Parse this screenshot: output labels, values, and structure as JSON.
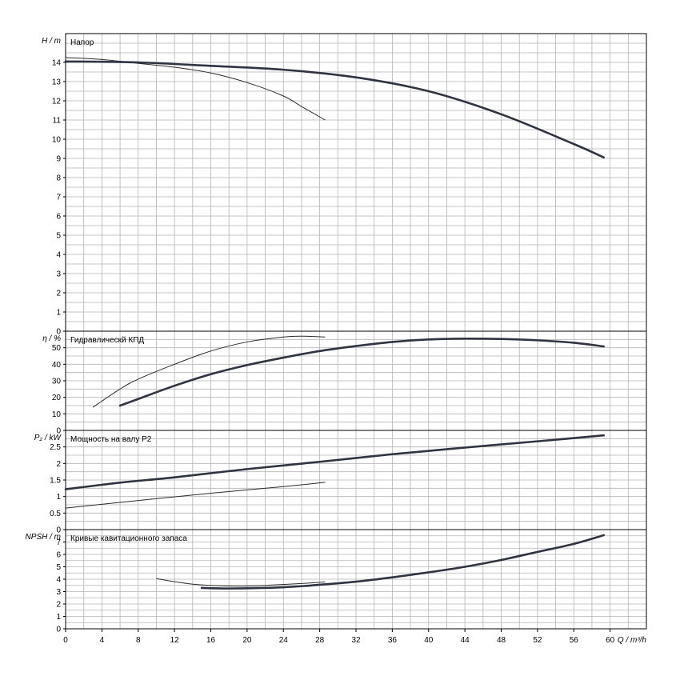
{
  "chart_data": {
    "type": "line",
    "x_axis": {
      "label": "Q / m³/h",
      "range": [
        0,
        64
      ],
      "ticks": [
        0,
        4,
        8,
        12,
        16,
        20,
        24,
        28,
        32,
        36,
        40,
        44,
        48,
        52,
        56,
        60
      ],
      "tick_labels": [
        "0",
        "4",
        "8",
        "12",
        "16",
        "20",
        "24",
        "28",
        "32",
        "36",
        "40",
        "44",
        "48",
        "52",
        "56",
        "60"
      ]
    },
    "grid": true,
    "panels": [
      {
        "id": "head",
        "title": "Напор",
        "ylabel": "H / m",
        "ylim": [
          0,
          15.5
        ],
        "ticks": [
          0,
          1,
          2,
          3,
          4,
          5,
          6,
          7,
          8,
          9,
          10,
          11,
          12,
          13,
          14
        ],
        "tick_labels": [
          "0",
          "1",
          "2",
          "3",
          "4",
          "5",
          "6",
          "7",
          "8",
          "9",
          "10",
          "11",
          "12",
          "13",
          "14"
        ],
        "series": [
          {
            "style": "thin",
            "x": [
              0,
              4,
              8,
              12,
              16,
              20,
              24,
              26,
              28.6
            ],
            "y": [
              14.25,
              14.15,
              13.95,
              13.75,
              13.45,
              12.95,
              12.25,
              11.7,
              11.0
            ]
          },
          {
            "style": "thick",
            "x": [
              0,
              8,
              16,
              24,
              32,
              40,
              48,
              56,
              59.3
            ],
            "y": [
              14.05,
              14.0,
              13.82,
              13.62,
              13.22,
              12.5,
              11.3,
              9.75,
              9.05
            ]
          }
        ]
      },
      {
        "id": "efficiency",
        "title": "Гидравлическй КПД",
        "ylabel": "η / %",
        "ylim": [
          0,
          60
        ],
        "ticks": [
          0,
          10,
          20,
          30,
          40,
          50
        ],
        "tick_labels": [
          "0",
          "10",
          "20",
          "30",
          "40",
          "50"
        ],
        "series": [
          {
            "style": "thin",
            "x": [
              3,
              6,
              8,
              12,
              16,
              20,
              24,
              26,
              28.6
            ],
            "y": [
              14,
              25,
              31,
              40,
              48,
              53.5,
              56.5,
              57,
              56.5
            ]
          },
          {
            "style": "thick",
            "x": [
              6,
              8,
              12,
              16,
              20,
              24,
              28,
              32,
              36,
              40,
              44,
              48,
              52,
              56,
              59.3
            ],
            "y": [
              15,
              19,
              27,
              34,
              39.5,
              44,
              48,
              51,
              53.5,
              55,
              55.5,
              55.3,
              54.5,
              53,
              50.8
            ]
          }
        ]
      },
      {
        "id": "power",
        "title": "Мощность на валу P2",
        "ylabel": "P₂ / kW",
        "ylim": [
          0,
          3.0
        ],
        "ticks": [
          0,
          0.5,
          1,
          1.5,
          2,
          2.5
        ],
        "tick_labels": [
          "0",
          "0.5",
          "1",
          "1.5",
          "2",
          "2.5"
        ],
        "series": [
          {
            "style": "thin",
            "x": [
              0,
              8,
              16,
              24,
              28.6
            ],
            "y": [
              0.65,
              0.88,
              1.1,
              1.3,
              1.43
            ]
          },
          {
            "style": "thick",
            "x": [
              0,
              6,
              12,
              20,
              28,
              36,
              44,
              52,
              59.3
            ],
            "y": [
              1.22,
              1.42,
              1.58,
              1.83,
              2.05,
              2.28,
              2.48,
              2.67,
              2.85
            ]
          }
        ]
      },
      {
        "id": "npsh",
        "title": "Кривые кавитационного запаса",
        "ylabel": "NPSH / m",
        "ylim": [
          0,
          8
        ],
        "ticks": [
          0,
          1,
          2,
          3,
          4,
          5,
          6,
          7
        ],
        "tick_labels": [
          "0",
          "1",
          "2",
          "3",
          "4",
          "5",
          "6",
          "7"
        ],
        "series": [
          {
            "style": "thin",
            "x": [
              10,
              12,
              14,
              16,
              18,
              20,
              22,
              24,
              26,
              28.6
            ],
            "y": [
              4.05,
              3.8,
              3.6,
              3.5,
              3.45,
              3.45,
              3.5,
              3.58,
              3.65,
              3.78
            ]
          },
          {
            "style": "thick",
            "x": [
              15,
              18,
              24,
              28,
              32,
              36,
              40,
              44,
              48,
              52,
              56,
              59.3
            ],
            "y": [
              3.3,
              3.25,
              3.35,
              3.55,
              3.8,
              4.15,
              4.55,
              5.0,
              5.55,
              6.2,
              6.85,
              7.55
            ]
          }
        ]
      }
    ]
  }
}
